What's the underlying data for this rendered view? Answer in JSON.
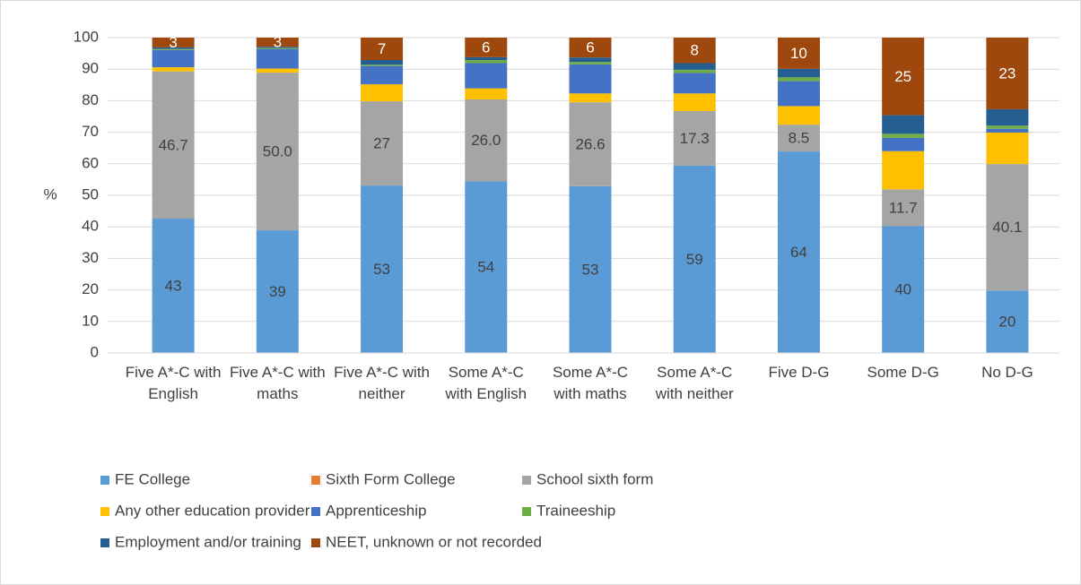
{
  "chart_data": {
    "type": "stacked_bar",
    "ylabel": "%",
    "categories": [
      "Five A*-C with English",
      "Five A*-C with maths",
      "Five A*-C with neither",
      "Some A*-C with English",
      "Some A*-C with maths",
      "Some A*-C with neither",
      "Five D-G",
      "Some D-G",
      "No D-G"
    ],
    "ylim": [
      0,
      100
    ],
    "yticks": [
      0,
      10,
      20,
      30,
      40,
      50,
      60,
      70,
      80,
      90,
      100
    ],
    "grid": true,
    "series": [
      {
        "name": "FE College",
        "color": "#5b9bd5",
        "values": [
          42.6,
          38.9,
          53.1,
          54.4,
          52.9,
          59.4,
          63.9,
          40.2,
          19.8
        ],
        "value_labels": [
          "43",
          "39",
          "53",
          "54",
          "53",
          "59",
          "64",
          "40",
          "20"
        ]
      },
      {
        "name": "Sixth Form College",
        "color": "#ed7d31",
        "values": [
          0,
          0,
          0,
          0,
          0,
          0,
          0,
          0,
          0
        ]
      },
      {
        "name": "School sixth form",
        "color": "#a5a5a5",
        "values": [
          46.7,
          50.0,
          26.7,
          26.0,
          26.6,
          17.3,
          8.5,
          11.7,
          40.1
        ],
        "value_labels": [
          "46.7",
          "50.0",
          "27",
          "26.0",
          "26.6",
          "17.3",
          "8.5",
          "11.7",
          "40.1"
        ]
      },
      {
        "name": "Any other education provider",
        "color": "#ffc000",
        "values": [
          1.3,
          1.3,
          5.4,
          3.5,
          2.8,
          5.6,
          5.9,
          12.1,
          10
        ]
      },
      {
        "name": "Apprenticeship",
        "color": "#4472c4",
        "values": [
          5.5,
          6.2,
          5.8,
          8,
          9.2,
          6.5,
          7.9,
          4.2,
          1.2
        ]
      },
      {
        "name": "Traineeship",
        "color": "#70ad47",
        "values": [
          0.3,
          0.3,
          0.4,
          1,
          0.8,
          1,
          1.2,
          1.3,
          1
        ]
      },
      {
        "name": "Employment and/or training",
        "color": "#255e91",
        "values": [
          0.5,
          0.4,
          1.5,
          0.9,
          1.4,
          2.1,
          2.7,
          5.9,
          5.2
        ]
      },
      {
        "name": "NEET, unknown or not recorded",
        "color": "#9e480e",
        "values": [
          3.1,
          2.9,
          7.1,
          6.2,
          6.3,
          8.1,
          9.9,
          24.6,
          22.7
        ],
        "value_labels": [
          "3",
          "3",
          "7",
          "6",
          "6",
          "8",
          "10",
          "25",
          "23"
        ]
      }
    ]
  }
}
